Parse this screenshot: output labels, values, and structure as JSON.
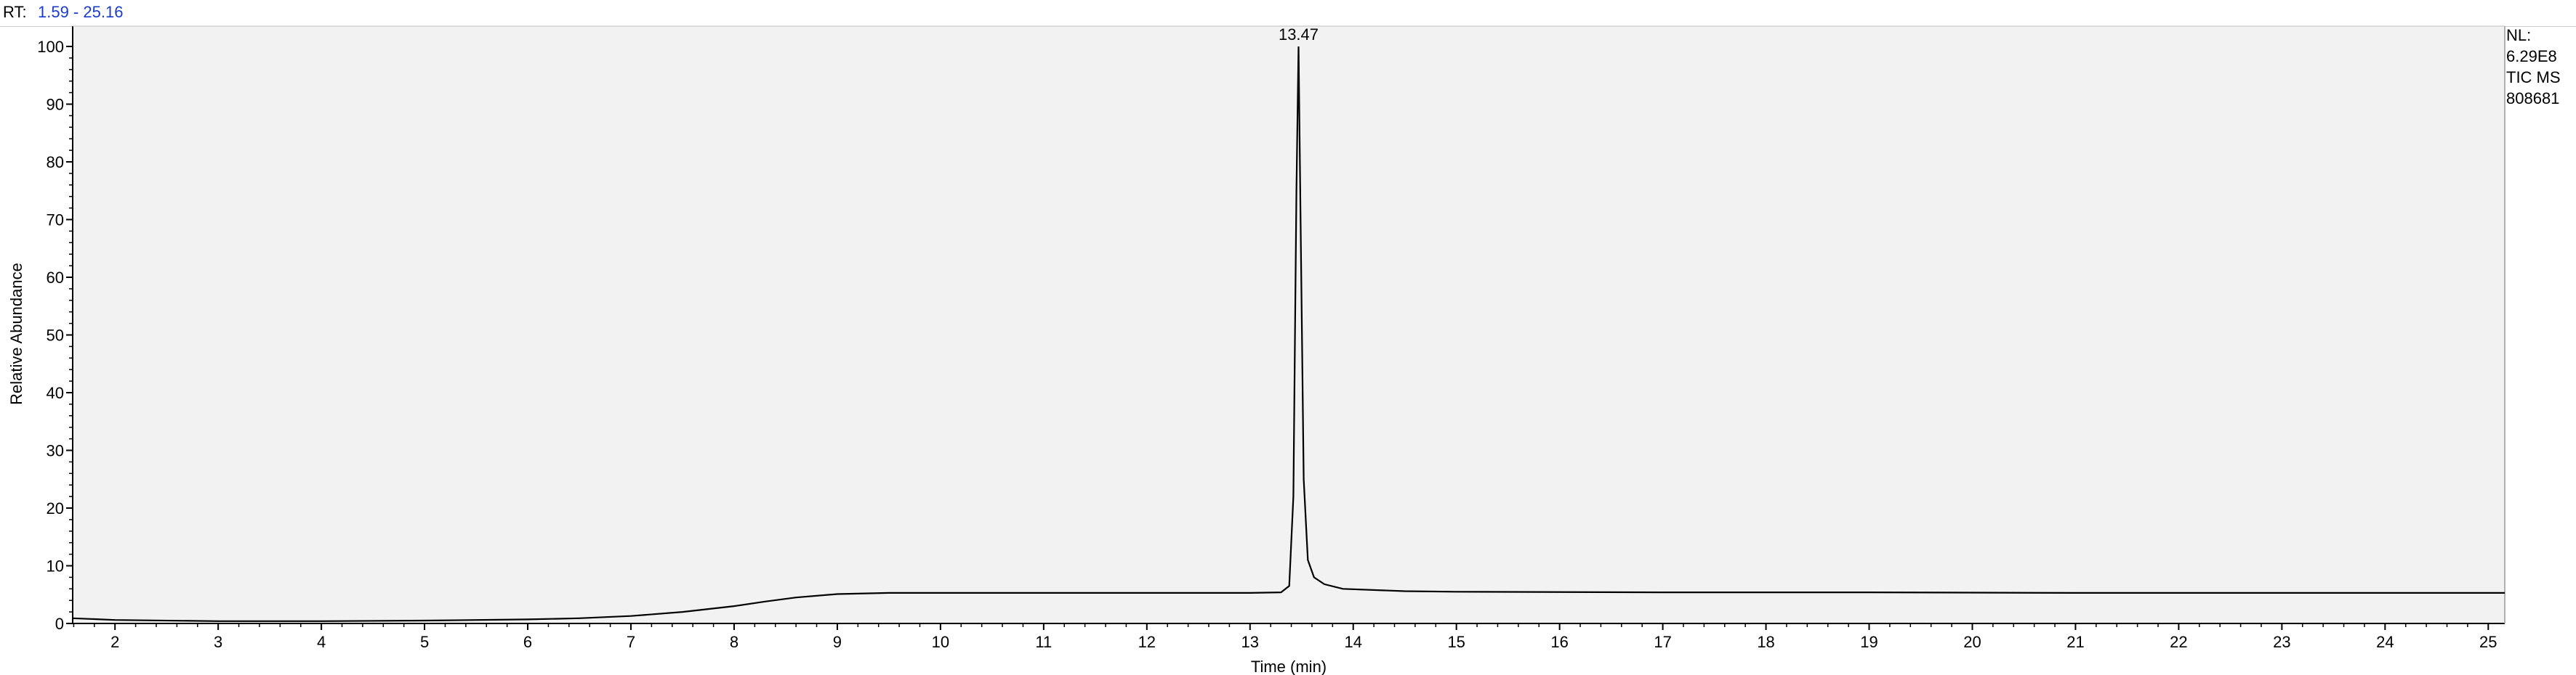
{
  "header": {
    "rt_label": "RT:",
    "rt_range": "1.59 - 25.16"
  },
  "info": {
    "nl_label": "NL:",
    "nl_value": "6.29E8",
    "scan_filter": "TIC  MS",
    "file_id": "808681"
  },
  "colors": {
    "plot_background": "#f2f2f2",
    "trace": "#000000",
    "rt_value_text": "#1a3cc8"
  },
  "chart_data": {
    "type": "line",
    "xlabel": "Time (min)",
    "ylabel": "Relative Abundance",
    "xlim": [
      1.59,
      25.16
    ],
    "ylim": [
      0,
      100
    ],
    "x_ticks": [
      2,
      3,
      4,
      5,
      6,
      7,
      8,
      9,
      10,
      11,
      12,
      13,
      14,
      15,
      16,
      17,
      18,
      19,
      20,
      21,
      22,
      23,
      24,
      25
    ],
    "y_ticks": [
      0,
      10,
      20,
      30,
      40,
      50,
      60,
      70,
      80,
      90,
      100
    ],
    "grid": false,
    "peak_label": {
      "x": 13.47,
      "y": 100,
      "text": "13.47"
    },
    "series": [
      {
        "x": [
          1.59,
          2.0,
          3.0,
          4.0,
          5.0,
          6.0,
          6.5,
          7.0,
          7.5,
          8.0,
          8.3,
          8.6,
          9.0,
          9.5,
          10.0,
          11.0,
          12.0,
          13.0,
          13.3,
          13.38,
          13.42,
          13.45,
          13.47,
          13.49,
          13.52,
          13.56,
          13.62,
          13.72,
          13.9,
          14.5,
          15.0,
          17.0,
          19.0,
          21.0,
          23.0,
          25.16
        ],
        "y": [
          0.9,
          0.6,
          0.4,
          0.4,
          0.5,
          0.7,
          0.9,
          1.3,
          2.0,
          3.0,
          3.8,
          4.5,
          5.1,
          5.3,
          5.3,
          5.3,
          5.3,
          5.3,
          5.4,
          6.5,
          22.0,
          75.0,
          100.0,
          70.0,
          25.0,
          11.0,
          8.0,
          6.8,
          6.0,
          5.6,
          5.5,
          5.4,
          5.4,
          5.3,
          5.3,
          5.3
        ]
      }
    ]
  }
}
